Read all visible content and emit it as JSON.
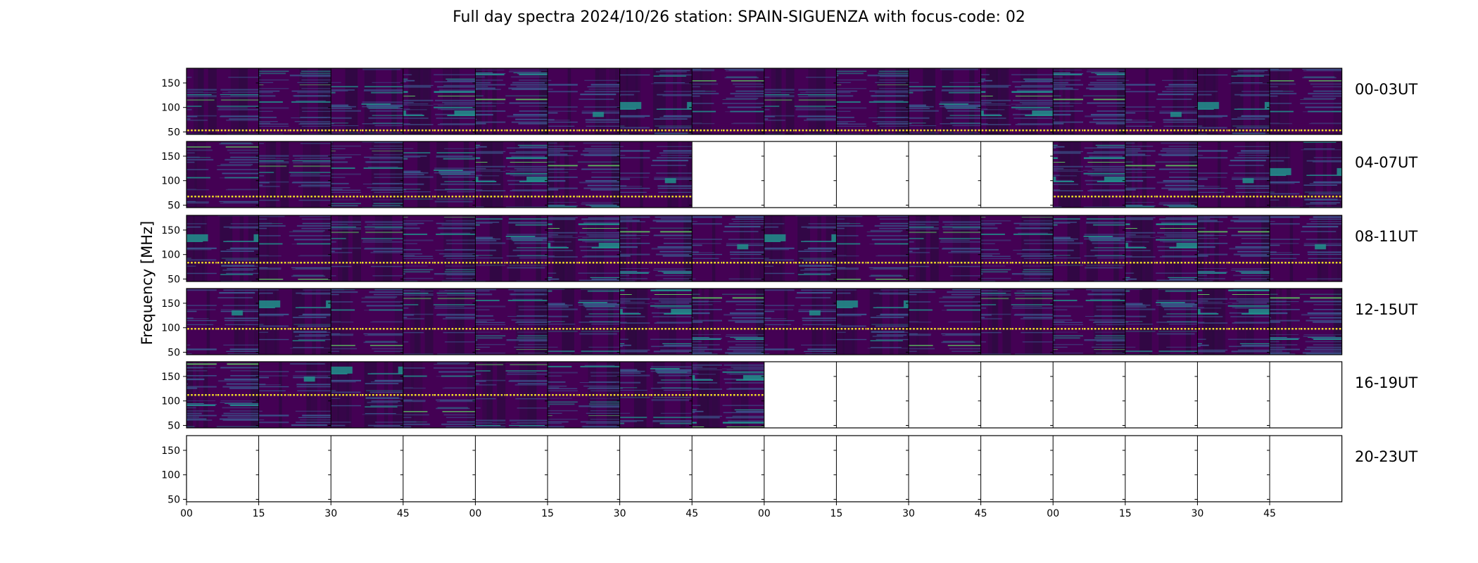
{
  "chart_data": {
    "type": "heatmap",
    "title": "Full day spectra 2024/10/26 station: SPAIN-SIGUENZA with focus-code: 02",
    "ylabel": "Frequency [MHz]",
    "xlabel": "",
    "y_ticks": [
      "150",
      "100",
      "50"
    ],
    "x_ticks": [
      "00",
      "15",
      "30",
      "45",
      "00",
      "15",
      "30",
      "45",
      "00",
      "15",
      "30",
      "45",
      "00",
      "15",
      "30",
      "45"
    ],
    "rows": [
      {
        "label": "00-03UT",
        "available": [
          1,
          1,
          1,
          1,
          1,
          1,
          1,
          1,
          1,
          1,
          1,
          1,
          1,
          1,
          1,
          1
        ]
      },
      {
        "label": "04-07UT",
        "available": [
          1,
          1,
          1,
          1,
          1,
          1,
          1,
          0,
          0,
          0,
          0,
          0,
          1,
          1,
          1,
          1
        ]
      },
      {
        "label": "08-11UT",
        "available": [
          1,
          1,
          1,
          1,
          1,
          1,
          1,
          1,
          1,
          1,
          1,
          1,
          1,
          1,
          1,
          1
        ]
      },
      {
        "label": "12-15UT",
        "available": [
          1,
          1,
          1,
          1,
          1,
          1,
          1,
          1,
          1,
          1,
          1,
          1,
          1,
          1,
          1,
          1
        ]
      },
      {
        "label": "16-19UT",
        "available": [
          1,
          1,
          1,
          1,
          1,
          1,
          1,
          1,
          0,
          0,
          0,
          0,
          0,
          0,
          0,
          0
        ]
      },
      {
        "label": "20-23UT",
        "available": [
          0,
          0,
          0,
          0,
          0,
          0,
          0,
          0,
          0,
          0,
          0,
          0,
          0,
          0,
          0,
          0
        ]
      }
    ],
    "colormap": [
      "#440154",
      "#3b528b",
      "#21918c",
      "#5ec962",
      "#fde725"
    ],
    "ylim": [
      45,
      180
    ]
  }
}
